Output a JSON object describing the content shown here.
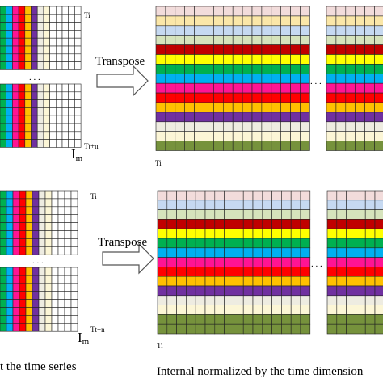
{
  "labels": {
    "transpose": "Transpose",
    "ti": "Ti",
    "ttn": "Tt+n",
    "im": "I",
    "im_sub": "m",
    "dots": ". . .",
    "caption_left": "t the time series",
    "caption_right": "Internal normalized by the time dimension"
  },
  "palette_top": [
    "#f2dcdb",
    "#fbe7a8",
    "#c6d9f1",
    "#d6e3bc",
    "#c00000",
    "#ffff00",
    "#00b050",
    "#00b0f0",
    "#ff1493",
    "#ff0000",
    "#ffc000",
    "#7030a0",
    "#eeece1",
    "#fcf6d6",
    "#76923c"
  ],
  "palette_bottom": [
    "#f2dcdb",
    "#c6d9f1",
    "#d6e3bc",
    "#c00000",
    "#ffff00",
    "#00b050",
    "#00b0f0",
    "#ff1493",
    "#ff0000",
    "#ffc000",
    "#7030a0",
    "#eeece1",
    "#fcf6d6",
    "#76923c",
    "#76923c"
  ]
}
